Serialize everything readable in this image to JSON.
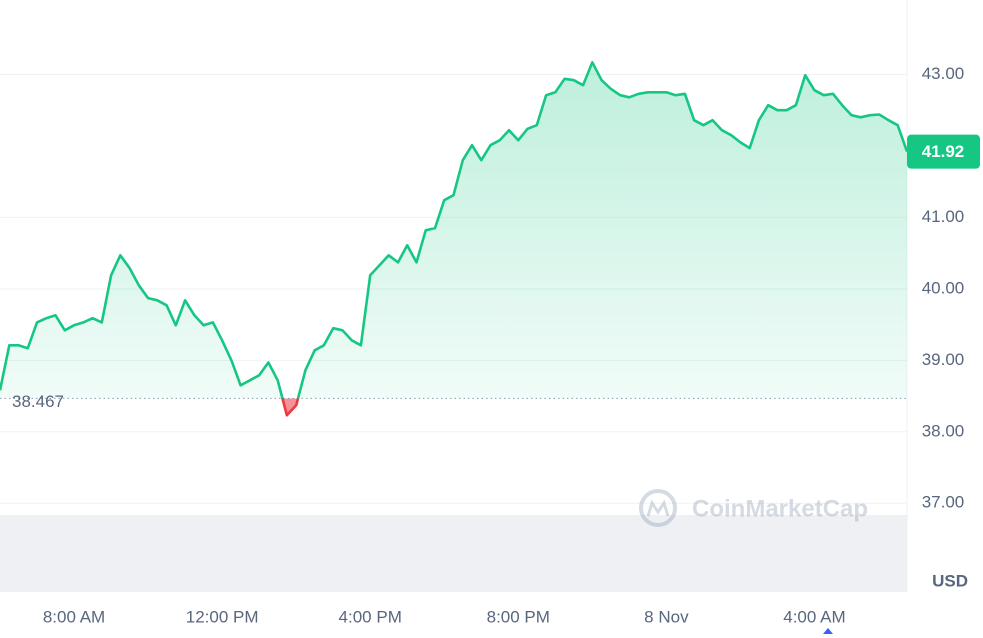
{
  "chart_data": {
    "type": "line",
    "categories": [
      null,
      null,
      null,
      null,
      null,
      null,
      null,
      null,
      "8:00 AM",
      null,
      null,
      null,
      null,
      null,
      null,
      null,
      null,
      null,
      null,
      null,
      null,
      null,
      null,
      null,
      "12:00 PM",
      null,
      null,
      null,
      null,
      null,
      null,
      null,
      null,
      null,
      null,
      null,
      null,
      null,
      null,
      null,
      "4:00 PM",
      null,
      null,
      null,
      null,
      null,
      null,
      null,
      null,
      null,
      null,
      null,
      null,
      null,
      null,
      null,
      "8:00 PM",
      null,
      null,
      null,
      null,
      null,
      null,
      null,
      null,
      null,
      null,
      null,
      null,
      null,
      null,
      null,
      "8 Nov",
      null,
      null,
      null,
      null,
      null,
      null,
      null,
      null,
      null,
      null,
      null,
      null,
      null,
      null,
      null,
      "4:00 AM",
      null,
      null,
      null,
      null,
      null,
      null,
      null,
      null,
      null,
      null
    ],
    "values": [
      38.58,
      39.21,
      39.21,
      39.17,
      39.53,
      39.59,
      39.63,
      39.42,
      39.49,
      39.53,
      39.59,
      39.53,
      40.19,
      40.47,
      40.29,
      40.05,
      39.87,
      39.84,
      39.77,
      39.49,
      39.84,
      39.63,
      39.49,
      39.53,
      39.28,
      39.0,
      38.65,
      38.72,
      38.79,
      38.97,
      38.72,
      38.23,
      38.37,
      38.86,
      39.14,
      39.21,
      39.45,
      39.42,
      39.28,
      39.21,
      40.19,
      40.33,
      40.47,
      40.37,
      40.61,
      40.37,
      40.82,
      40.85,
      41.24,
      41.31,
      41.8,
      42.01,
      41.8,
      42.01,
      42.08,
      42.22,
      42.08,
      42.24,
      42.29,
      42.71,
      42.75,
      42.94,
      42.92,
      42.85,
      43.17,
      42.92,
      42.8,
      42.71,
      42.68,
      42.73,
      42.75,
      42.75,
      42.75,
      42.71,
      42.73,
      42.36,
      42.29,
      42.36,
      42.22,
      42.15,
      42.05,
      41.97,
      42.36,
      42.57,
      42.5,
      42.5,
      42.57,
      42.99,
      42.78,
      42.71,
      42.73,
      42.57,
      42.43,
      42.4,
      42.43,
      42.44,
      42.36,
      42.29,
      41.92
    ],
    "baseline": 38.467,
    "up_color": "#16c784",
    "down_color": "#ea3943",
    "ylim": [
      35.8,
      44.0
    ],
    "yticks": [
      {
        "value": 37,
        "label": "37.00"
      },
      {
        "value": 38,
        "label": "38.00"
      },
      {
        "value": 39,
        "label": "39.00"
      },
      {
        "value": 40,
        "label": "40.00"
      },
      {
        "value": 41,
        "label": "41.00"
      },
      {
        "value": 43,
        "label": "43.00"
      }
    ],
    "grid": true,
    "unit": "USD",
    "watermark": "CoinMarketCap"
  }
}
